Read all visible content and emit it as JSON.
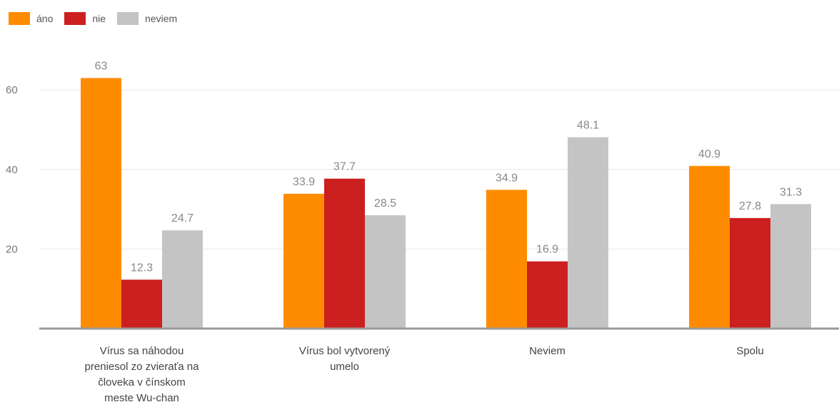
{
  "chart_data": {
    "type": "bar",
    "categories": [
      "Vírus sa náhodou\npreniesol zo zvieraťa na\nčloveka v čínskom\nmeste Wu-chan",
      "Vírus bol vytvorený\numelo",
      "Neviem",
      "Spolu"
    ],
    "series": [
      {
        "name": "áno",
        "color": "#ff8c00",
        "values": [
          63,
          33.9,
          34.9,
          40.9
        ]
      },
      {
        "name": "nie",
        "color": "#cc1f1f",
        "values": [
          12.3,
          37.7,
          16.9,
          27.8
        ]
      },
      {
        "name": "neviem",
        "color": "#c4c4c4",
        "values": [
          24.7,
          28.5,
          48.1,
          31.3
        ]
      }
    ],
    "value_labels": [
      [
        "63",
        "33.9",
        "34.9",
        "40.9"
      ],
      [
        "12.3",
        "37.7",
        "16.9",
        "27.8"
      ],
      [
        "24.7",
        "28.5",
        "48.1",
        "31.3"
      ]
    ],
    "yticks": [
      "20",
      "40",
      "60"
    ],
    "ylim": [
      0,
      70
    ],
    "legend_position": "top-left",
    "grid": true
  }
}
